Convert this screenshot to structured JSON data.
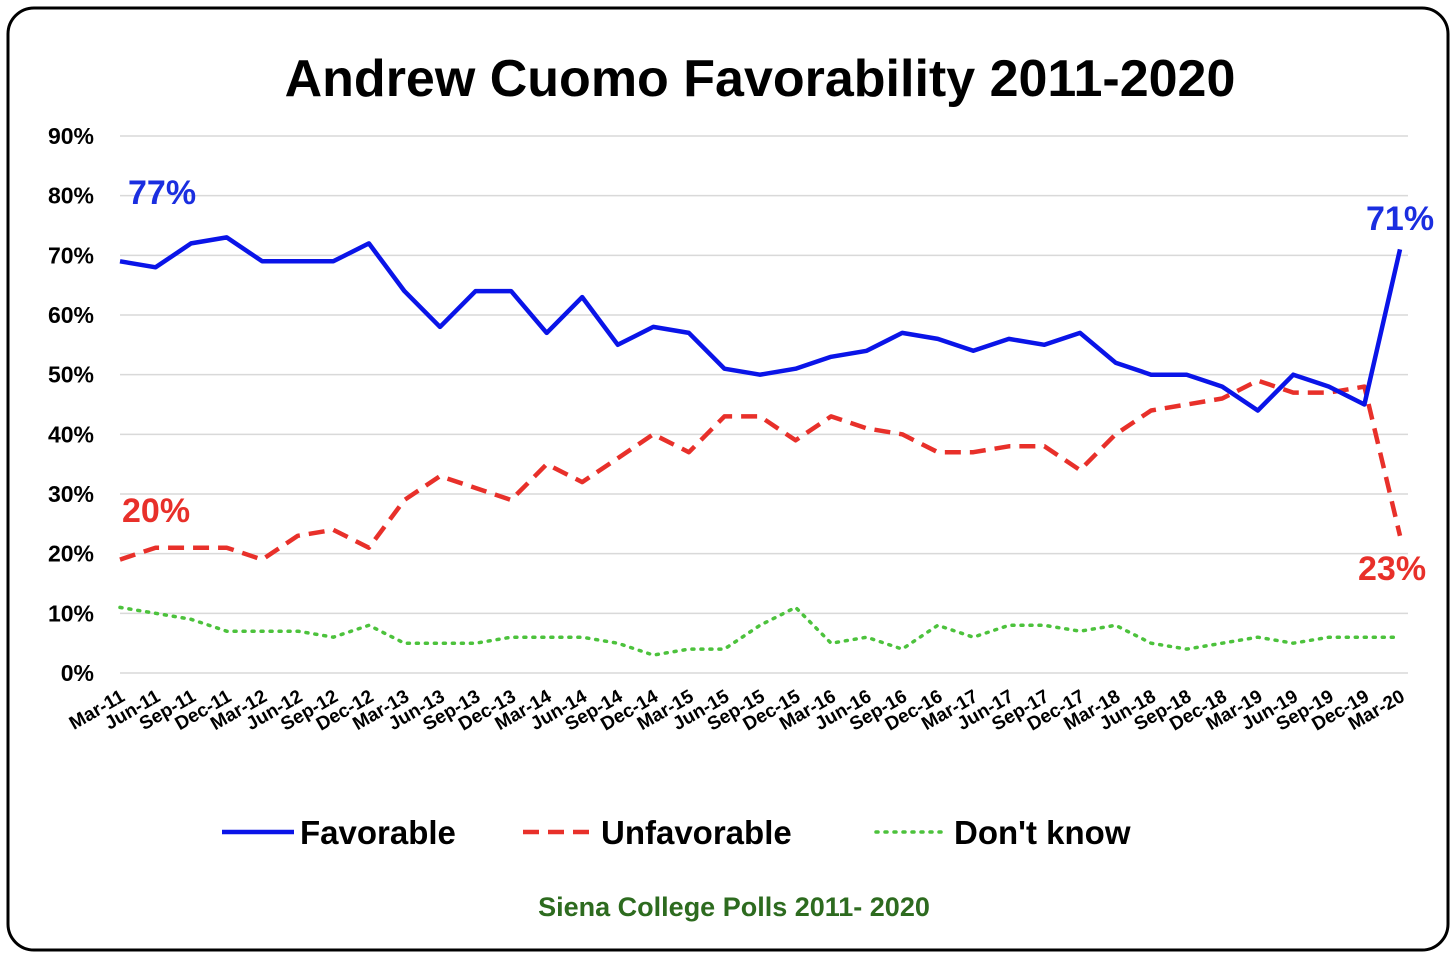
{
  "chart_data": {
    "type": "line",
    "title": "Andrew Cuomo Favorability 2011-2020",
    "source": "Siena College Polls 2011- 2020",
    "categories": [
      "Mar-11",
      "Jun-11",
      "Sep-11",
      "Dec-11",
      "Mar-12",
      "Jun-12",
      "Sep-12",
      "Dec-12",
      "Mar-13",
      "Jun-13",
      "Sep-13",
      "Dec-13",
      "Mar-14",
      "Jun-14",
      "Sep-14",
      "Dec-14",
      "Mar-15",
      "Jun-15",
      "Sep-15",
      "Dec-15",
      "Mar-16",
      "Jun-16",
      "Sep-16",
      "Dec-16",
      "Mar-17",
      "Jun-17",
      "Sep-17",
      "Dec-17",
      "Mar-18",
      "Jun-18",
      "Sep-18",
      "Dec-18",
      "Mar-19",
      "Jun-19",
      "Sep-19",
      "Dec-19",
      "Mar-20"
    ],
    "series": [
      {
        "name": "Favorable",
        "color": "#0a14e8",
        "dash": "solid",
        "values": [
          69,
          68,
          72,
          73,
          69,
          69,
          69,
          72,
          64,
          58,
          64,
          64,
          57,
          63,
          55,
          58,
          57,
          51,
          50,
          51,
          53,
          54,
          57,
          56,
          54,
          56,
          55,
          57,
          52,
          50,
          50,
          48,
          44,
          50,
          48,
          45,
          71
        ]
      },
      {
        "name": "Unfavorable",
        "color": "#e8302a",
        "dash": "dashed",
        "values": [
          19,
          21,
          21,
          21,
          19,
          23,
          24,
          21,
          29,
          33,
          31,
          29,
          35,
          32,
          36,
          40,
          37,
          43,
          43,
          39,
          43,
          41,
          40,
          37,
          37,
          38,
          38,
          34,
          40,
          44,
          45,
          46,
          49,
          47,
          47,
          48,
          23
        ]
      },
      {
        "name": "Don't know",
        "color": "#4cc23c",
        "dash": "dotted",
        "values": [
          11,
          10,
          9,
          7,
          7,
          7,
          6,
          8,
          5,
          5,
          5,
          6,
          6,
          6,
          5,
          3,
          4,
          4,
          8,
          11,
          5,
          6,
          4,
          8,
          6,
          8,
          8,
          7,
          8,
          5,
          4,
          5,
          6,
          5,
          6,
          6,
          6
        ]
      }
    ],
    "annotations": [
      {
        "text": "77%",
        "color": "#1a2ee0"
      },
      {
        "text": "71%",
        "color": "#1a2ee0"
      },
      {
        "text": "20%",
        "color": "#e8302a"
      },
      {
        "text": "23%",
        "color": "#e8302a"
      }
    ],
    "ylim": [
      0,
      90
    ],
    "yticks": [
      {
        "value": 0,
        "label": "0%"
      },
      {
        "value": 10,
        "label": "10%"
      },
      {
        "value": 20,
        "label": "20%"
      },
      {
        "value": 30,
        "label": "30%"
      },
      {
        "value": 40,
        "label": "40%"
      },
      {
        "value": 50,
        "label": "50%"
      },
      {
        "value": 60,
        "label": "60%"
      },
      {
        "value": 70,
        "label": "70%"
      },
      {
        "value": 80,
        "label": "80%"
      },
      {
        "value": 90,
        "label": "90%"
      }
    ],
    "grid": true,
    "legend": "bottom"
  }
}
